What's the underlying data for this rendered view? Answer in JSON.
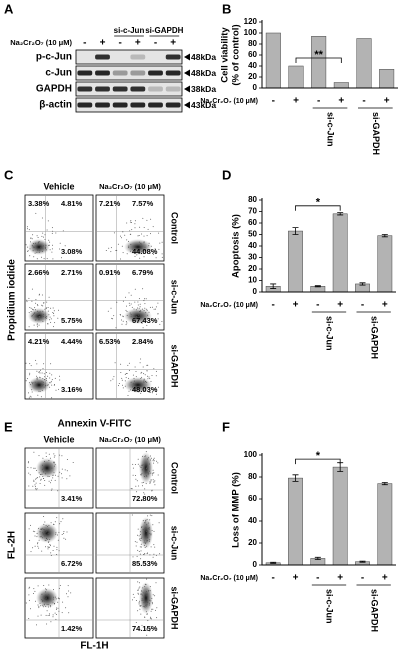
{
  "panel_letters": [
    "A",
    "B",
    "C",
    "D",
    "E",
    "F"
  ],
  "blot": {
    "treatment_label": "Na₂Cr₂O₇ (10 μM)",
    "groups": [
      "si-c-Jun",
      "si-GAPDH"
    ],
    "lanes": [
      "-",
      "+",
      "-",
      "+",
      "-",
      "+"
    ],
    "rows": [
      {
        "protein": "p-c-Jun",
        "size": "48kDa"
      },
      {
        "protein": "c-Jun",
        "size": "48kDa"
      },
      {
        "protein": "GAPDH",
        "size": "38kDa"
      },
      {
        "protein": "β-actin",
        "size": "43kDa"
      }
    ]
  },
  "annexin": {
    "columns": [
      "Vehicle",
      "Na₂Cr₂O₇ (10 μM)"
    ],
    "rows": [
      "Control",
      "si-c-Jun",
      "si-GAPDH"
    ],
    "quadrants": [
      [
        [
          "3.38%",
          "4.81%",
          "3.08%"
        ],
        [
          "7.21%",
          "7.57%",
          "44.08%"
        ]
      ],
      [
        [
          "2.66%",
          "2.71%",
          "5.75%"
        ],
        [
          "0.91%",
          "6.79%",
          "67.43%"
        ]
      ],
      [
        [
          "4.21%",
          "4.44%",
          "3.16%"
        ],
        [
          "6.53%",
          "2.84%",
          "48.03%"
        ]
      ]
    ],
    "y_label": "Propidium iodide",
    "x_label": "Annexin V-FITC"
  },
  "mmp": {
    "columns": [
      "Vehicle",
      "Na₂Cr₂O₇ (10 μM)"
    ],
    "rows": [
      "Control",
      "si-c-Jun",
      "si-GAPDH"
    ],
    "quadrants": [
      [
        "3.41%",
        "72.80%"
      ],
      [
        "6.72%",
        "85.53%"
      ],
      [
        "1.42%",
        "74.15%"
      ]
    ],
    "y_label": "FL-2H",
    "x_label": "FL-1H"
  },
  "chart_data": [
    {
      "type": "bar",
      "y_label": [
        "Cell viability",
        "(% of control)"
      ],
      "treatment_label": "Na₂Cr₂O₇ (10 μM)",
      "groups": [
        "si-c-Jun",
        "si-GAPDH"
      ],
      "categories": [
        "-",
        "+",
        "-",
        "+",
        "-",
        "+"
      ],
      "values": [
        100,
        40,
        94,
        10,
        90,
        34
      ],
      "color": "#b3b3b3",
      "ylim": [
        0,
        120
      ],
      "yticks": [
        0,
        20,
        40,
        60,
        80,
        100,
        120
      ],
      "significance": "**"
    },
    {
      "type": "bar",
      "y_label": [
        "Apoptosis (%)"
      ],
      "treatment_label": "Na₂Cr₂O₇ (10 μM)",
      "groups": [
        "si-c-Jun",
        "si-GAPDH"
      ],
      "categories": [
        "-",
        "+",
        "-",
        "+",
        "-",
        "+"
      ],
      "values": [
        5,
        53,
        5,
        68,
        7,
        49
      ],
      "errors": [
        2,
        3,
        0.5,
        1,
        1,
        1
      ],
      "color": "#b3b3b3",
      "ylim": [
        0,
        80
      ],
      "yticks": [
        0,
        10,
        20,
        30,
        40,
        50,
        60,
        70,
        80
      ],
      "significance": "*"
    },
    {
      "type": "bar",
      "y_label": [
        "Loss of MMP (%)"
      ],
      "treatment_label": "Na₂Cr₂O₇ (10 μM)",
      "groups": [
        "si-c-Jun",
        "si-GAPDH"
      ],
      "categories": [
        "-",
        "+",
        "-",
        "+",
        "-",
        "+"
      ],
      "values": [
        2,
        79,
        6,
        89,
        3,
        74
      ],
      "errors": [
        0.5,
        3,
        1,
        4,
        0.5,
        1
      ],
      "color": "#b3b3b3",
      "ylim": [
        0,
        100
      ],
      "yticks": [
        0,
        20,
        40,
        60,
        80,
        100
      ],
      "significance": "*"
    }
  ]
}
